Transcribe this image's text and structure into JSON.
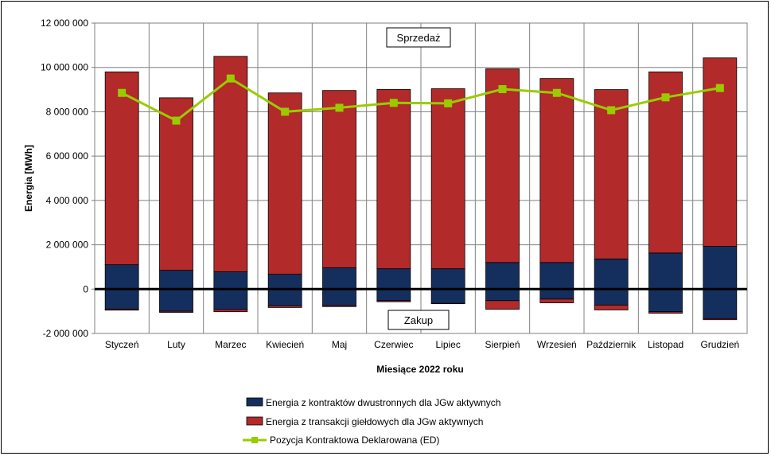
{
  "chart_data": {
    "type": "bar",
    "stacked": true,
    "categories": [
      "Styczeń",
      "Luty",
      "Marzec",
      "Kwiecień",
      "Maj",
      "Czerwiec",
      "Lipiec",
      "Sierpień",
      "Wrzesień",
      "Październik",
      "Listopad",
      "Grudzień"
    ],
    "series": [
      {
        "name": "Energia z kontraktów dwustronnych dla JGw aktywnych",
        "type": "bar",
        "color": "#142f5e",
        "positive": [
          1100000,
          850000,
          780000,
          670000,
          960000,
          920000,
          920000,
          1200000,
          1200000,
          1360000,
          1630000,
          1930000
        ],
        "negative": [
          -900000,
          -1000000,
          -920000,
          -750000,
          -740000,
          -520000,
          -640000,
          -520000,
          -450000,
          -720000,
          -1020000,
          -1330000
        ]
      },
      {
        "name": "Energia z transakcji giełdowych dla JGw aktywnych",
        "type": "bar",
        "color": "#b22a2a",
        "positive": [
          8700000,
          7780000,
          9720000,
          8180000,
          8000000,
          8090000,
          8120000,
          8740000,
          8300000,
          7640000,
          8170000,
          8500000
        ],
        "negative": [
          -50000,
          -50000,
          -100000,
          -80000,
          -50000,
          -50000,
          -20000,
          -390000,
          -170000,
          -220000,
          -70000,
          -50000
        ]
      },
      {
        "name": "Pozycja Kontraktowa Deklarowana (ED)",
        "type": "line",
        "color": "#99cc00",
        "values": [
          8850000,
          7600000,
          9500000,
          8000000,
          8180000,
          8400000,
          8380000,
          9020000,
          8850000,
          8070000,
          8650000,
          9070000
        ]
      }
    ],
    "ylabel": "Energia [MWh]",
    "xlabel": "Miesiące 2022  roku",
    "ylim": [
      -2000000,
      12000000
    ],
    "yticks": [
      -2000000,
      0,
      2000000,
      4000000,
      6000000,
      8000000,
      10000000,
      12000000
    ],
    "ytick_labels": [
      "-2 000 000",
      "0",
      "2 000 000",
      "4 000 000",
      "6 000 000",
      "8 000 000",
      "10 000 000",
      "12 000 000"
    ],
    "grid": true,
    "legend_position": "bottom",
    "annotations": [
      "Sprzedaż",
      "Zakup"
    ]
  }
}
